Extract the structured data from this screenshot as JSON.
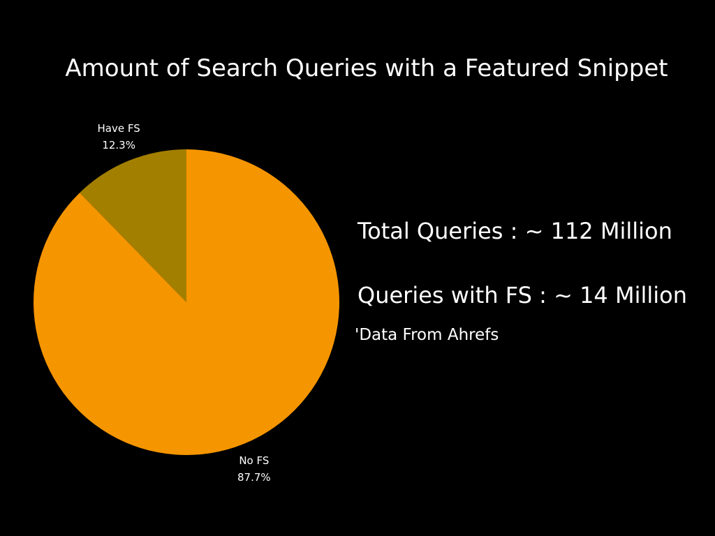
{
  "chart_data": {
    "type": "pie",
    "title": "Amount of Search Queries with a Featured Snippet",
    "slices": [
      {
        "name": "Have FS",
        "value": 12.3,
        "label": "12.3%",
        "color": "#a37f00"
      },
      {
        "name": "No FS",
        "value": 87.7,
        "label": "87.7%",
        "color": "#f59500"
      }
    ]
  },
  "stats": {
    "total": "Total Queries : ~ 112 Million",
    "with_fs": "Queries with FS : ~ 14 Million",
    "source": "'Data From Ahrefs"
  }
}
